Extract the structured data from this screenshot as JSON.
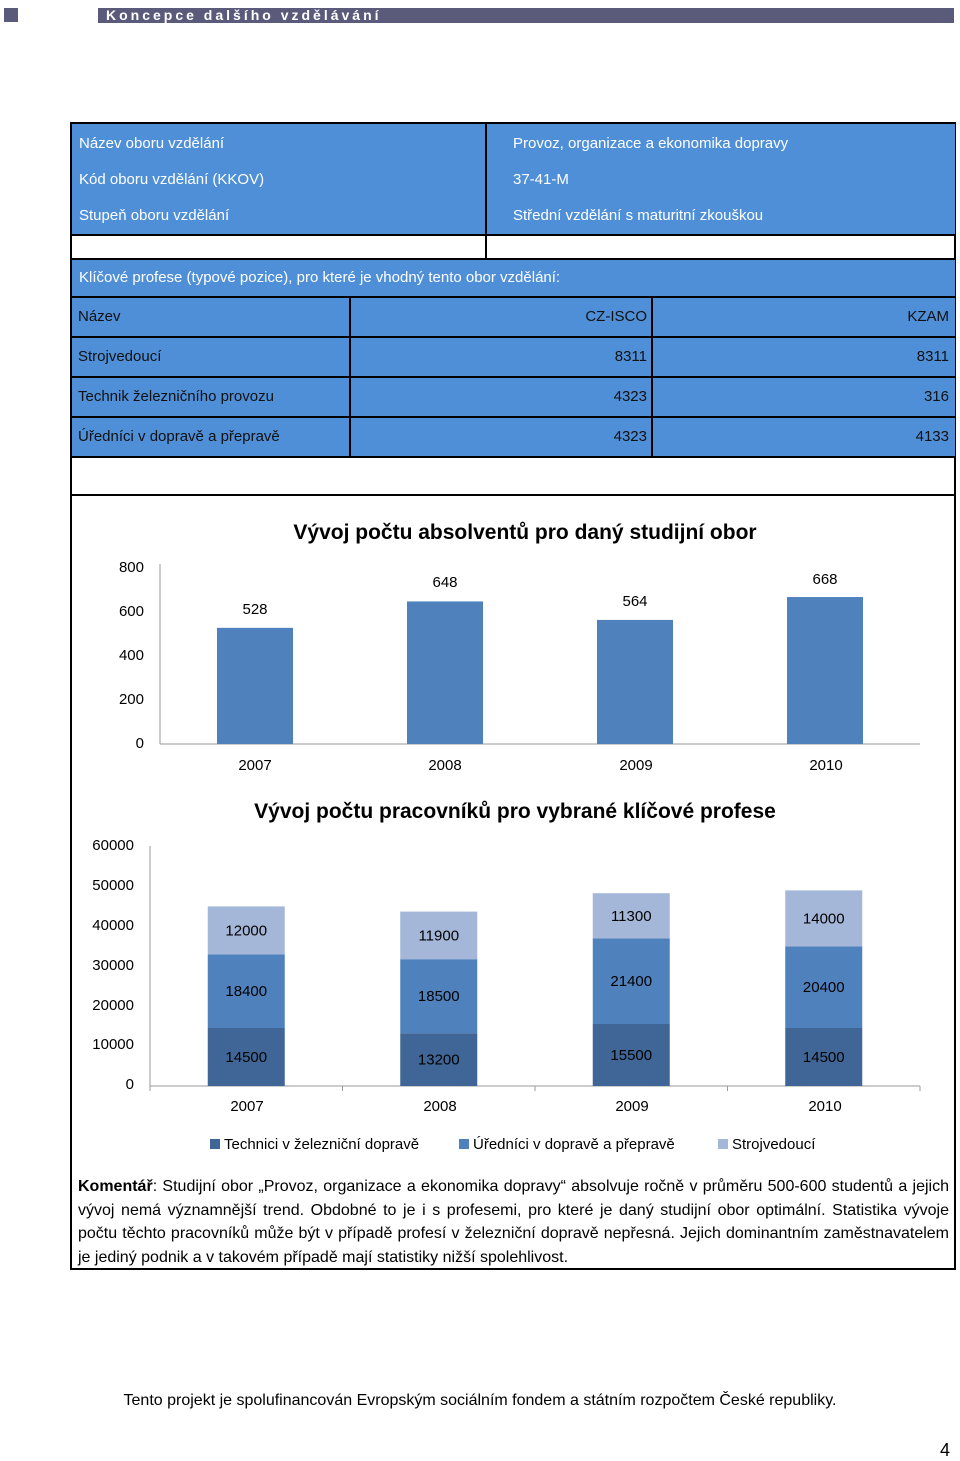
{
  "header": {
    "title": "Koncepce dalšího vzdělávání"
  },
  "info": {
    "rows": [
      {
        "label": "Název oboru vzdělání",
        "value": "Provoz, organizace a ekonomika dopravy"
      },
      {
        "label": "Kód oboru vzdělání (KKOV)",
        "value": "37-41-M"
      },
      {
        "label": "Stupeň oboru vzdělání",
        "value": "Střední vzdělání s maturitní zkouškou"
      }
    ]
  },
  "professions": {
    "title": "Klíčové profese (typové pozice), pro které je vhodný tento obor vzdělání:",
    "headers": [
      "Název",
      "CZ-ISCO",
      "KZAM"
    ],
    "rows": [
      [
        "Strojvedoucí",
        "8311",
        "8311"
      ],
      [
        "Technik železničního provozu",
        "4323",
        "316"
      ],
      [
        "Úředníci v dopravě a přepravě",
        "4323",
        "4133"
      ]
    ]
  },
  "chart_data": [
    {
      "type": "bar",
      "title": "Vývoj počtu absolventů pro daný studijní obor",
      "categories": [
        "2007",
        "2008",
        "2009",
        "2010"
      ],
      "values": [
        528,
        648,
        564,
        668
      ],
      "y_ticks": [
        "800",
        "600",
        "400",
        "200",
        "0"
      ],
      "ylim": [
        0,
        800
      ],
      "color": "#4f81bd",
      "grid": false
    },
    {
      "type": "bar",
      "stacked": true,
      "title": "Vývoj počtu pracovníků pro vybrané klíčové profese",
      "categories": [
        "2007",
        "2008",
        "2009",
        "2010"
      ],
      "y_ticks": [
        "60000",
        "50000",
        "40000",
        "30000",
        "20000",
        "10000",
        "0"
      ],
      "ylim": [
        0,
        60000
      ],
      "series": [
        {
          "name": "Technici v železniční dopravě",
          "values": [
            14500,
            13200,
            15500,
            14500
          ],
          "color": "#3f6696"
        },
        {
          "name": "Úředníci v dopravě a přepravě",
          "values": [
            18400,
            18500,
            21400,
            20400
          ],
          "color": "#4f81bd"
        },
        {
          "name": "Strojvedoucí",
          "values": [
            12000,
            11900,
            11300,
            14000
          ],
          "color": "#a4b7d8"
        }
      ],
      "legend": "bottom",
      "grid": false
    }
  ],
  "comment": {
    "label": "Komentář",
    "text": ": Studijní obor „Provoz, organizace a ekonomika dopravy“ absolvuje ročně v průměru 500-600 studentů a jejich vývoj nemá významnější trend. Obdobné to je i s profesemi, pro které je daný studijní obor optimální. Statistika vývoje počtu těchto pracovníků může být v případě profesí v železniční dopravě nepřesná. Jejich dominantním zaměstnavatelem je jediný podnik a v takovém případě mají statistiky nižší spolehlivost."
  },
  "footer": {
    "text": "Tento projekt je spolufinancován Evropským sociálním fondem a státním rozpočtem České republiky."
  },
  "page_number": "4"
}
